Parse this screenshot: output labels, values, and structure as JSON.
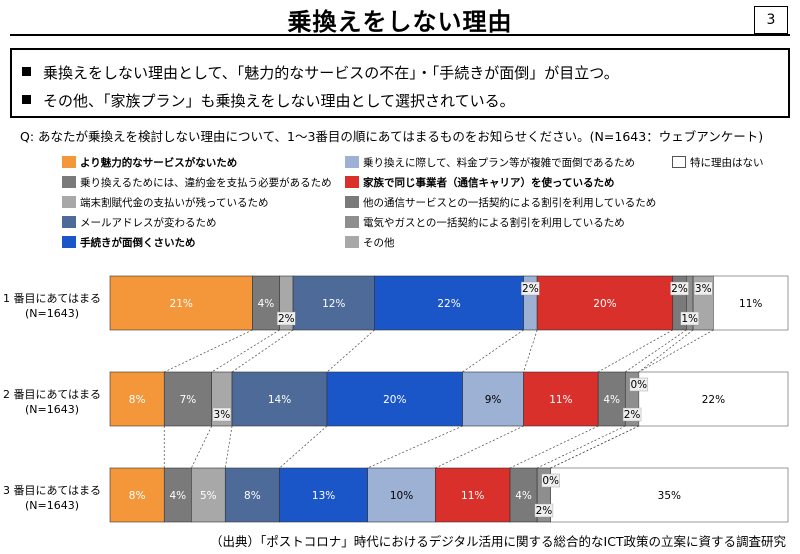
{
  "title": "乗換えをしない理由",
  "page_number": "3",
  "summary": [
    "乗換えをしない理由として、「魅力的なサービスの不在」・「手続きが面倒」が目立つ。",
    "その他、「家族プラン」も乗換えをしない理由として選択されている。"
  ],
  "question": "Q: あなたが乗換えを検討しない理由について、1～3番目の順にあてはまるものをお知らせください。(N=1643：ウェブアンケート)",
  "source": "（出典）「ポストコロナ」時代におけるデジタル活用に関する総合的なICT政策の立案に資する調査研究",
  "colors": {
    "orange": "#F4973A",
    "gray_dark": "#7A7A7A",
    "gray_mid": "#8E8E8E",
    "gray_light": "#A8A8A8",
    "steel_blue": "#4E6A98",
    "blue": "#1A56C8",
    "light_blue": "#9CB1D4",
    "red": "#D9302C",
    "white": "#FFFFFF"
  },
  "chart_data": {
    "type": "bar",
    "orientation": "horizontal-stacked-100",
    "unit": "%",
    "legend": [
      {
        "name": "より魅力的なサービスがないため",
        "color": "#F4973A",
        "bold": true
      },
      {
        "name": "乗り換えるためには、違約金を支払う必要があるため",
        "color": "#7A7A7A",
        "bold": false
      },
      {
        "name": "端末割賦代金の支払いが残っているため",
        "color": "#A8A8A8",
        "bold": false
      },
      {
        "name": "メールアドレスが変わるため",
        "color": "#4E6A98",
        "bold": false
      },
      {
        "name": "手続きが面倒くさいため",
        "color": "#1A56C8",
        "bold": true
      },
      {
        "name": "乗り換えに際して、料金プラン等が複雑で面倒であるため",
        "color": "#9CB1D4",
        "bold": false
      },
      {
        "name": "家族で同じ事業者（通信キャリア）を使っているため",
        "color": "#D9302C",
        "bold": true
      },
      {
        "name": "他の通信サービスとの一括契約による割引を利用しているため",
        "color": "#7A7A7A",
        "bold": false
      },
      {
        "name": "電気やガスとの一括契約による割引を利用しているため",
        "color": "#8E8E8E",
        "bold": false
      },
      {
        "name": "その他",
        "color": "#A8A8A8",
        "bold": false
      },
      {
        "name": "特に理由はない",
        "color": "#FFFFFF",
        "bold": false
      }
    ],
    "rows": [
      {
        "label_line1": "1 番目にあてはまる",
        "label_line2": "(N=1643)",
        "values": [
          21,
          4,
          2,
          12,
          22,
          2,
          20,
          2,
          1,
          3,
          11
        ],
        "labels": [
          "21%",
          "4%",
          "2%",
          "12%",
          "22%",
          "2%",
          "20%",
          "2%",
          "1%",
          "3%",
          "11%"
        ]
      },
      {
        "label_line1": "2 番目にあてはまる",
        "label_line2": "(N=1643)",
        "values": [
          8,
          7,
          3,
          14,
          20,
          9,
          11,
          4,
          2,
          0,
          22
        ],
        "labels": [
          "8%",
          "7%",
          "3%",
          "14%",
          "20%",
          "9%",
          "11%",
          "4%",
          "2%",
          "0%",
          "22%"
        ]
      },
      {
        "label_line1": "3 番目にあてはまる",
        "label_line2": "(N=1643)",
        "values": [
          8,
          4,
          5,
          8,
          13,
          10,
          11,
          4,
          2,
          0,
          35
        ],
        "labels": [
          "8%",
          "4%",
          "5%",
          "8%",
          "13%",
          "10%",
          "11%",
          "4%",
          "2%",
          "0%",
          "35%"
        ]
      }
    ]
  }
}
